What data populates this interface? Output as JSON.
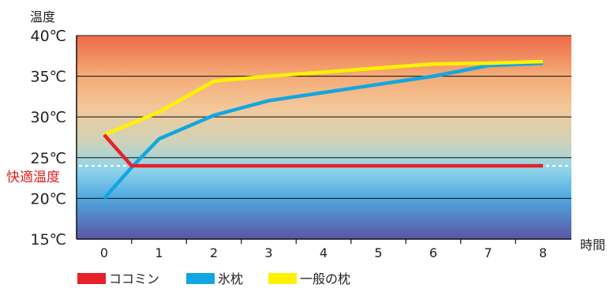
{
  "chart_data": {
    "type": "line",
    "ylabel": "温度",
    "xlabel": "時間",
    "ylim": [
      15,
      40
    ],
    "xlim": [
      0,
      8
    ],
    "y_ticks": [
      "15℃",
      "20℃",
      "25℃",
      "30℃",
      "35℃",
      "40℃"
    ],
    "y_tick_values": [
      15,
      20,
      25,
      30,
      35,
      40
    ],
    "x_ticks": [
      "0",
      "1",
      "2",
      "3",
      "4",
      "5",
      "6",
      "7",
      "8"
    ],
    "grid": true,
    "comfort_line": {
      "label": "快適温度",
      "value": 24
    },
    "legend_position": "bottom-left",
    "series": [
      {
        "name": "ココミン",
        "color": "#e8202a",
        "points": [
          [
            0,
            27.8
          ],
          [
            0.5,
            24
          ],
          [
            8,
            24
          ]
        ]
      },
      {
        "name": "氷枕",
        "color": "#12a6e0",
        "points": [
          [
            0,
            20
          ],
          [
            0.5,
            23.8
          ],
          [
            1,
            27.3
          ],
          [
            2,
            30.2
          ],
          [
            3,
            32
          ],
          [
            4,
            33
          ],
          [
            5,
            34
          ],
          [
            6,
            35
          ],
          [
            7,
            36.3
          ],
          [
            8,
            36.6
          ]
        ]
      },
      {
        "name": "一般の枕",
        "color": "#fff200",
        "points": [
          [
            0,
            27.8
          ],
          [
            1,
            30.6
          ],
          [
            2,
            34.4
          ],
          [
            3,
            35
          ],
          [
            4,
            35.5
          ],
          [
            5,
            36
          ],
          [
            6,
            36.5
          ],
          [
            7,
            36.6
          ],
          [
            8,
            36.8
          ]
        ]
      }
    ]
  }
}
